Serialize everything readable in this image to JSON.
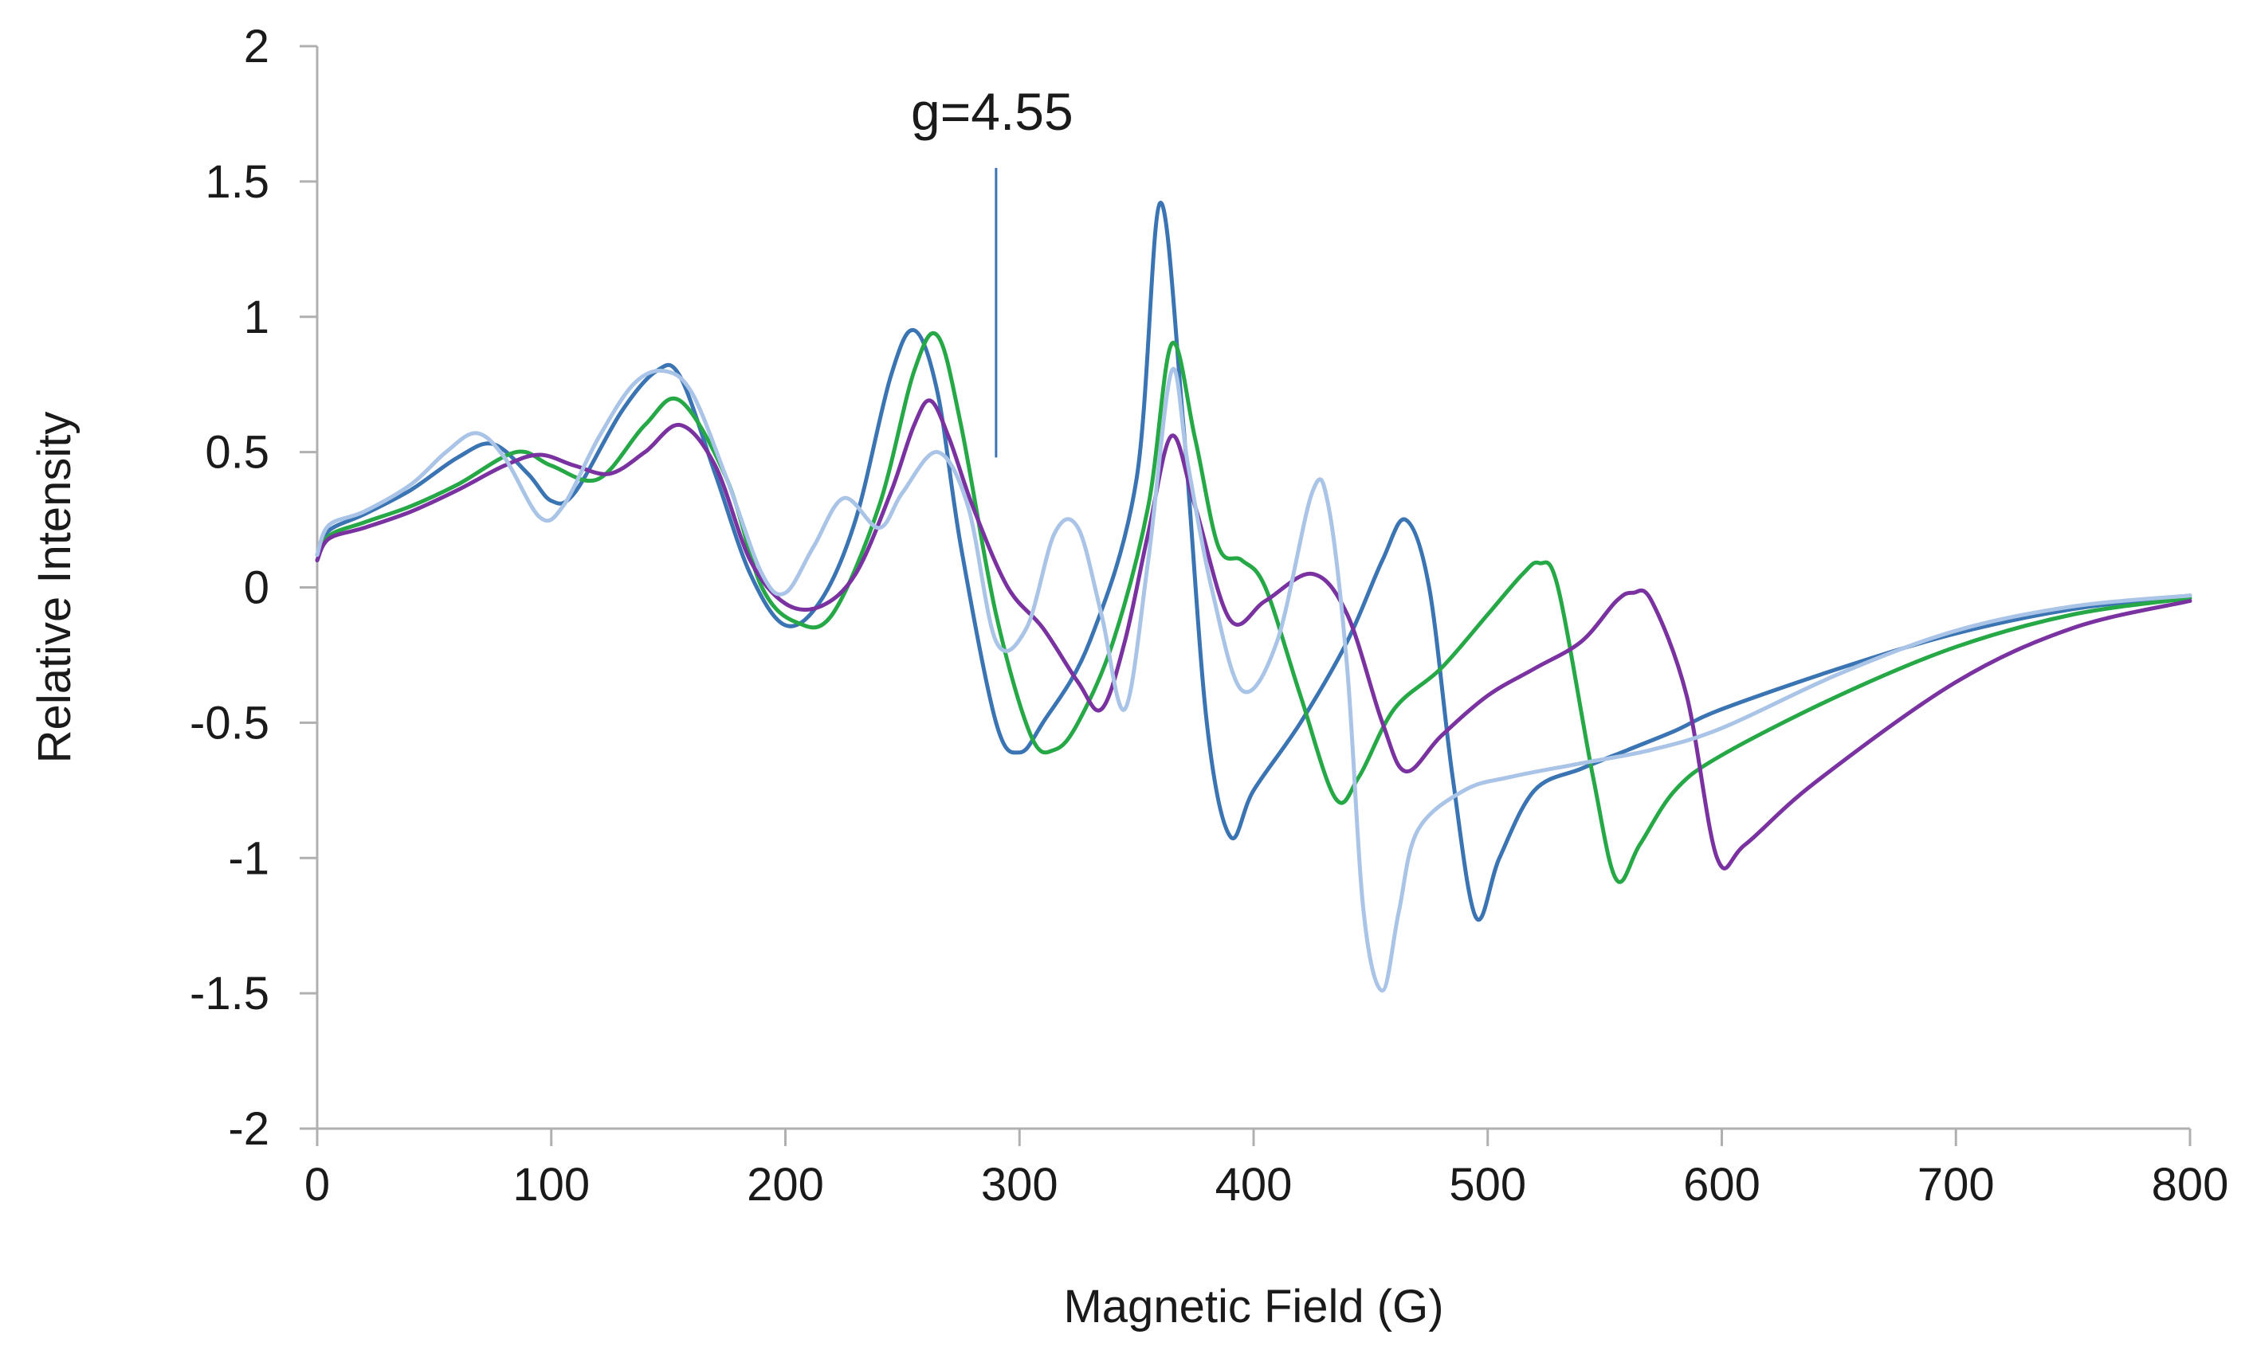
{
  "chart_data": {
    "type": "line",
    "title": "",
    "xlabel": "Magnetic Field (G)",
    "ylabel": "Relative Intensity",
    "xlim": [
      0,
      800
    ],
    "ylim": [
      -2,
      2
    ],
    "xticks": [
      0,
      100,
      200,
      300,
      400,
      500,
      600,
      700,
      800
    ],
    "yticks": [
      2,
      1.5,
      1,
      0.5,
      0,
      -0.5,
      -1,
      -1.5,
      -2
    ],
    "ytick_labels": [
      "2",
      "1.5",
      "1",
      "0.5",
      "0",
      "-0.5",
      "-1",
      "-1.5",
      "-2"
    ],
    "grid": false,
    "legend": "none",
    "annotations": [
      {
        "text": "g=4.55",
        "x": 290,
        "y_top": 1.55,
        "y_bottom": 0.48
      }
    ],
    "series": [
      {
        "name": "series-dark-blue",
        "color": "#3a74b3",
        "x": [
          0,
          5,
          20,
          40,
          60,
          75,
          90,
          100,
          110,
          130,
          145,
          155,
          170,
          185,
          200,
          215,
          230,
          245,
          255,
          265,
          275,
          290,
          300,
          310,
          330,
          350,
          360,
          370,
          380,
          390,
          400,
          420,
          440,
          455,
          465,
          475,
          485,
          495,
          505,
          520,
          540,
          560,
          580,
          600,
          650,
          700,
          750,
          800
        ],
        "y": [
          0.12,
          0.21,
          0.27,
          0.36,
          0.48,
          0.53,
          0.42,
          0.32,
          0.35,
          0.65,
          0.8,
          0.78,
          0.42,
          0.05,
          -0.14,
          -0.05,
          0.25,
          0.78,
          0.95,
          0.72,
          0.15,
          -0.5,
          -0.61,
          -0.5,
          -0.2,
          0.4,
          1.42,
          0.6,
          -0.5,
          -0.92,
          -0.75,
          -0.5,
          -0.2,
          0.1,
          0.25,
          0.0,
          -0.7,
          -1.22,
          -1.0,
          -0.75,
          -0.67,
          -0.6,
          -0.53,
          -0.45,
          -0.3,
          -0.17,
          -0.08,
          -0.03
        ]
      },
      {
        "name": "series-green",
        "color": "#25a845",
        "x": [
          0,
          5,
          20,
          40,
          60,
          85,
          100,
          120,
          140,
          155,
          175,
          190,
          205,
          220,
          240,
          255,
          265,
          275,
          290,
          305,
          315,
          325,
          340,
          355,
          365,
          375,
          385,
          395,
          405,
          420,
          435,
          445,
          460,
          480,
          500,
          515,
          522,
          530,
          545,
          555,
          565,
          580,
          600,
          650,
          700,
          750,
          800
        ],
        "y": [
          0.1,
          0.19,
          0.24,
          0.3,
          0.38,
          0.5,
          0.45,
          0.4,
          0.6,
          0.69,
          0.4,
          0.0,
          -0.13,
          -0.1,
          0.3,
          0.8,
          0.93,
          0.6,
          -0.1,
          -0.55,
          -0.6,
          -0.5,
          -0.2,
          0.3,
          0.9,
          0.55,
          0.15,
          0.1,
          0.0,
          -0.4,
          -0.78,
          -0.7,
          -0.45,
          -0.3,
          -0.1,
          0.05,
          0.09,
          0.0,
          -0.7,
          -1.08,
          -0.95,
          -0.75,
          -0.62,
          -0.4,
          -0.22,
          -0.1,
          -0.04
        ]
      },
      {
        "name": "series-purple",
        "color": "#7a32a0",
        "x": [
          0,
          5,
          20,
          40,
          60,
          80,
          95,
          110,
          125,
          140,
          155,
          170,
          185,
          200,
          215,
          230,
          245,
          255,
          262,
          270,
          280,
          295,
          310,
          325,
          335,
          345,
          355,
          365,
          375,
          390,
          405,
          425,
          440,
          455,
          465,
          480,
          500,
          520,
          540,
          555,
          562,
          570,
          585,
          598,
          610,
          640,
          700,
          750,
          800
        ],
        "y": [
          0.1,
          0.18,
          0.22,
          0.28,
          0.36,
          0.45,
          0.49,
          0.45,
          0.42,
          0.5,
          0.6,
          0.45,
          0.1,
          -0.06,
          -0.07,
          0.05,
          0.35,
          0.6,
          0.69,
          0.55,
          0.3,
          0.0,
          -0.15,
          -0.35,
          -0.45,
          -0.2,
          0.2,
          0.56,
          0.3,
          -0.12,
          -0.05,
          0.05,
          -0.1,
          -0.5,
          -0.68,
          -0.55,
          -0.4,
          -0.3,
          -0.2,
          -0.05,
          -0.02,
          -0.05,
          -0.4,
          -1.0,
          -0.95,
          -0.72,
          -0.35,
          -0.15,
          -0.05
        ]
      },
      {
        "name": "series-light-blue",
        "color": "#a9c4e6",
        "x": [
          0,
          5,
          20,
          40,
          55,
          68,
          80,
          95,
          105,
          120,
          135,
          148,
          160,
          175,
          190,
          200,
          212,
          225,
          240,
          250,
          265,
          278,
          290,
          303,
          315,
          325,
          335,
          345,
          355,
          365,
          372,
          382,
          395,
          410,
          425,
          432,
          440,
          447,
          455,
          462,
          470,
          490,
          510,
          540,
          570,
          600,
          650,
          700,
          750,
          800
        ],
        "y": [
          0.12,
          0.23,
          0.28,
          0.38,
          0.5,
          0.57,
          0.48,
          0.26,
          0.3,
          0.55,
          0.75,
          0.8,
          0.72,
          0.4,
          0.05,
          -0.02,
          0.15,
          0.33,
          0.22,
          0.35,
          0.5,
          0.3,
          -0.2,
          -0.15,
          0.2,
          0.22,
          -0.1,
          -0.45,
          0.1,
          0.8,
          0.45,
          0.0,
          -0.38,
          -0.2,
          0.35,
          0.3,
          -0.3,
          -1.2,
          -1.49,
          -1.2,
          -0.9,
          -0.75,
          -0.7,
          -0.65,
          -0.6,
          -0.52,
          -0.32,
          -0.16,
          -0.07,
          -0.03
        ]
      }
    ]
  }
}
